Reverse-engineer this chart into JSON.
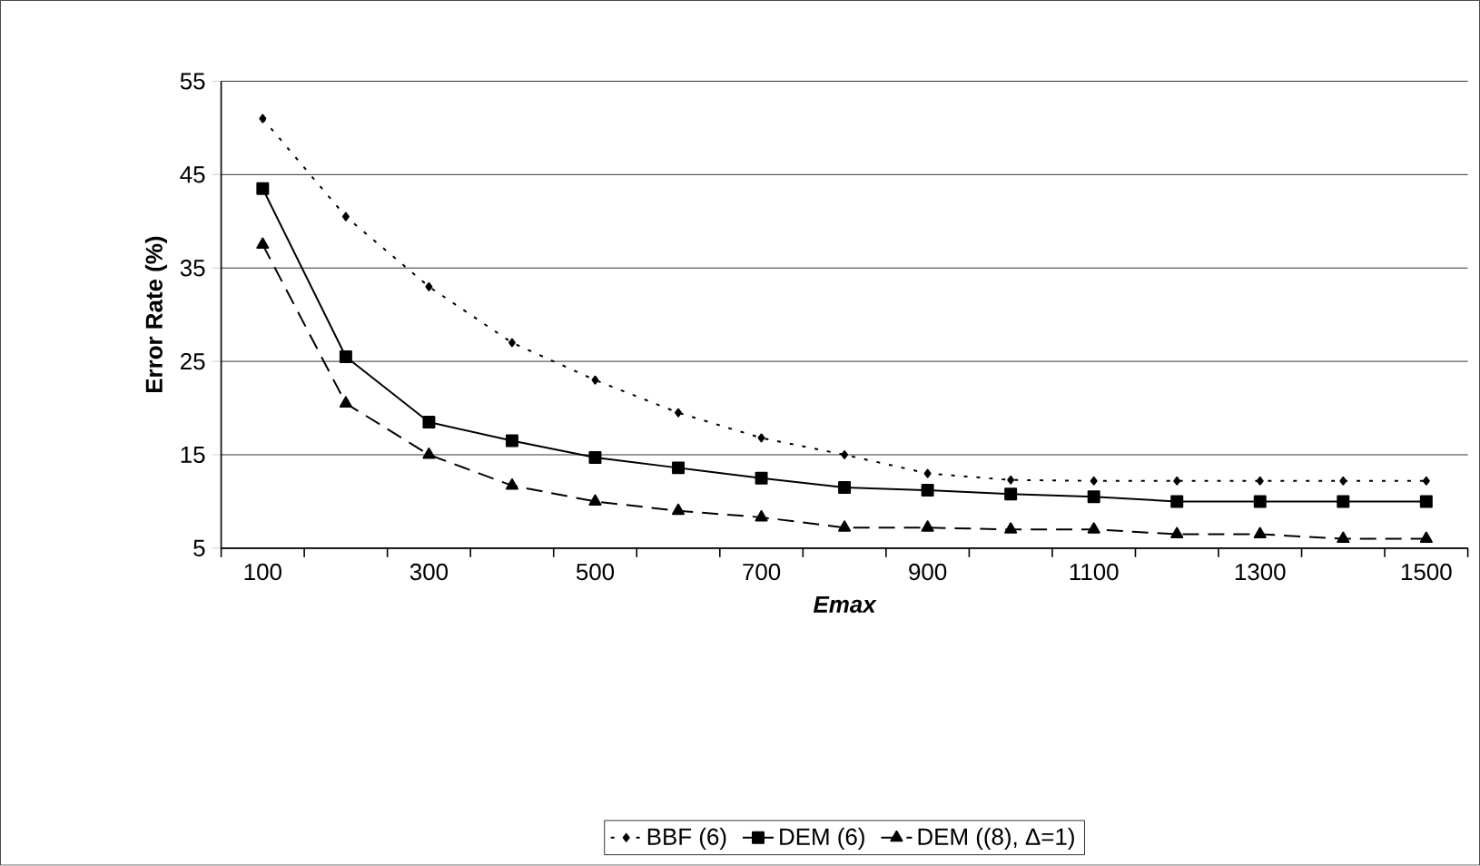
{
  "chart_data": {
    "type": "line",
    "xlabel": "Emax",
    "ylabel": "Error Rate (%)",
    "categories": [
      "100",
      null,
      "300",
      null,
      "500",
      null,
      "700",
      null,
      "900",
      null,
      "1100",
      null,
      "1300",
      null,
      "1500"
    ],
    "series": [
      {
        "name": "BBF (6)",
        "color": "#000000",
        "marker": "diamond",
        "line_style": "dotted",
        "values": [
          51,
          40.5,
          33,
          27,
          23,
          19.5,
          16.8,
          15,
          13,
          12.3,
          12.2,
          12.2,
          12.2,
          12.2,
          12.2
        ]
      },
      {
        "name": "DEM (6)",
        "color": "#000000",
        "marker": "square",
        "line_style": "solid",
        "values": [
          43.5,
          25.5,
          18.5,
          16.5,
          14.7,
          13.6,
          12.5,
          11.5,
          11.2,
          10.8,
          10.5,
          10,
          10,
          10,
          10
        ]
      },
      {
        "name": "DEM ((8), Δ=1)",
        "color": "#000000",
        "marker": "triangle",
        "line_style": "dashed",
        "values": [
          37.5,
          20.5,
          15,
          11.7,
          10,
          9,
          8.3,
          7.2,
          7.2,
          7,
          7,
          6.5,
          6.5,
          6,
          6
        ]
      }
    ],
    "ylim": [
      5,
      55
    ],
    "yticks": [
      5,
      15,
      25,
      35,
      45,
      55
    ],
    "grid": "y",
    "legend": "bottom"
  }
}
